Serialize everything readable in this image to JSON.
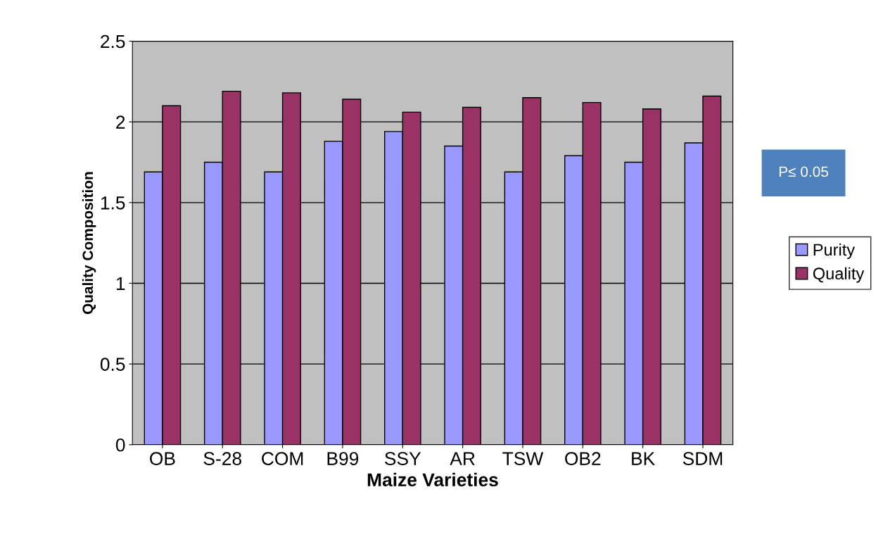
{
  "chart_data": {
    "type": "bar",
    "xlabel": "Maize Varieties",
    "ylabel": "Quality Composition",
    "categories": [
      "OB",
      "S-28",
      "COM",
      "B99",
      "SSY",
      "AR",
      "TSW",
      "OB2",
      "BK",
      "SDM"
    ],
    "series": [
      {
        "name": "Purity",
        "color": "#9999ff",
        "values": [
          1.69,
          1.75,
          1.69,
          1.88,
          1.94,
          1.85,
          1.69,
          1.79,
          1.75,
          1.87
        ]
      },
      {
        "name": "Quality",
        "color": "#993366",
        "values": [
          2.1,
          2.19,
          2.18,
          2.14,
          2.06,
          2.09,
          2.15,
          2.12,
          2.08,
          2.16
        ]
      }
    ],
    "ylim": [
      0,
      2.5
    ],
    "yticks": [
      0,
      0.5,
      1,
      1.5,
      2,
      2.5
    ],
    "grid": "y",
    "legend": "right",
    "annotations": [
      "P≤ 0.05"
    ]
  }
}
